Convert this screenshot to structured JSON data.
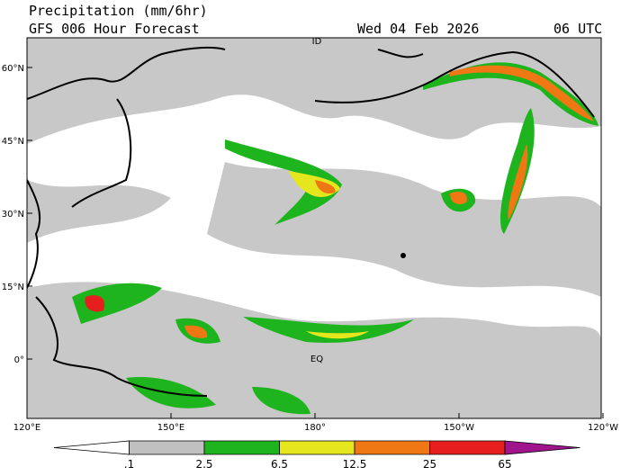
{
  "header": {
    "title": "Precipitation (mm/6hr)",
    "subtitle": "GFS 006 Hour Forecast",
    "valid_date": "Wed 04 Feb 2026",
    "valid_hour": "06 UTC"
  },
  "map": {
    "lat_labels": [
      "60°N",
      "45°N",
      "30°N",
      "15°N",
      "0°"
    ],
    "lon_labels": [
      "120°E",
      "150°E",
      "180°",
      "150°W",
      "120°W"
    ],
    "markers": [
      "ID",
      "EQ"
    ]
  },
  "legend": {
    "levels": [
      ".1",
      "2.5",
      "6.5",
      "12.5",
      "25",
      "65"
    ],
    "colors": [
      "#ffffff",
      "#c0c0c0",
      "#1eb41e",
      "#e6e61e",
      "#f07814",
      "#e61e1e",
      "#a0148c"
    ]
  }
}
